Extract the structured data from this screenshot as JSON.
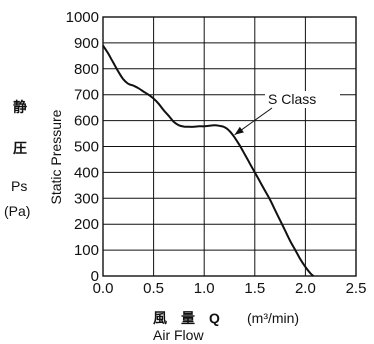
{
  "chart_data": {
    "type": "line",
    "title": "",
    "xlabel_jp": "風　量　Q",
    "xlabel_unit": "(m³/min)",
    "xlabel_en": "Air Flow",
    "ylabel_en": "Static Pressure",
    "ylabel_jp_1": "静",
    "ylabel_jp_2": "圧",
    "ylabel_symbol": "Ps",
    "ylabel_unit": "(Pa)",
    "xlim": [
      0,
      2.5
    ],
    "ylim": [
      0,
      1000
    ],
    "x_ticks": [
      0,
      0.5,
      1,
      1.5,
      2,
      2.5
    ],
    "x_tick_labels": [
      "0.0",
      "0.5",
      "1.0",
      "1.5",
      "2.0",
      "2.5"
    ],
    "y_ticks": [
      0,
      100,
      200,
      300,
      400,
      500,
      600,
      700,
      800,
      900,
      1000
    ],
    "y_tick_labels": [
      "0",
      "100",
      "200",
      "300",
      "400",
      "500",
      "600",
      "700",
      "800",
      "900",
      "1000"
    ],
    "grid": true,
    "series": [
      {
        "name": "S Class",
        "x": [
          0.0,
          0.05,
          0.1,
          0.15,
          0.2,
          0.25,
          0.3,
          0.35,
          0.4,
          0.45,
          0.5,
          0.55,
          0.6,
          0.65,
          0.7,
          0.75,
          0.8,
          0.85,
          0.9,
          0.95,
          1.0,
          1.05,
          1.1,
          1.15,
          1.2,
          1.25,
          1.3,
          1.35,
          1.4,
          1.45,
          1.5,
          1.55,
          1.6,
          1.65,
          1.7,
          1.75,
          1.8,
          1.85,
          1.9,
          1.95,
          2.0,
          2.05,
          2.08
        ],
        "y": [
          890,
          860,
          825,
          790,
          760,
          742,
          735,
          725,
          712,
          700,
          685,
          665,
          640,
          618,
          595,
          582,
          577,
          576,
          576,
          578,
          578,
          580,
          582,
          580,
          575,
          560,
          535,
          505,
          470,
          435,
          400,
          365,
          330,
          295,
          255,
          215,
          175,
          135,
          100,
          65,
          35,
          10,
          0
        ]
      }
    ],
    "annotations": [
      {
        "text": "S Class",
        "points_to": {
          "x": 1.3,
          "y": 545
        }
      }
    ]
  }
}
